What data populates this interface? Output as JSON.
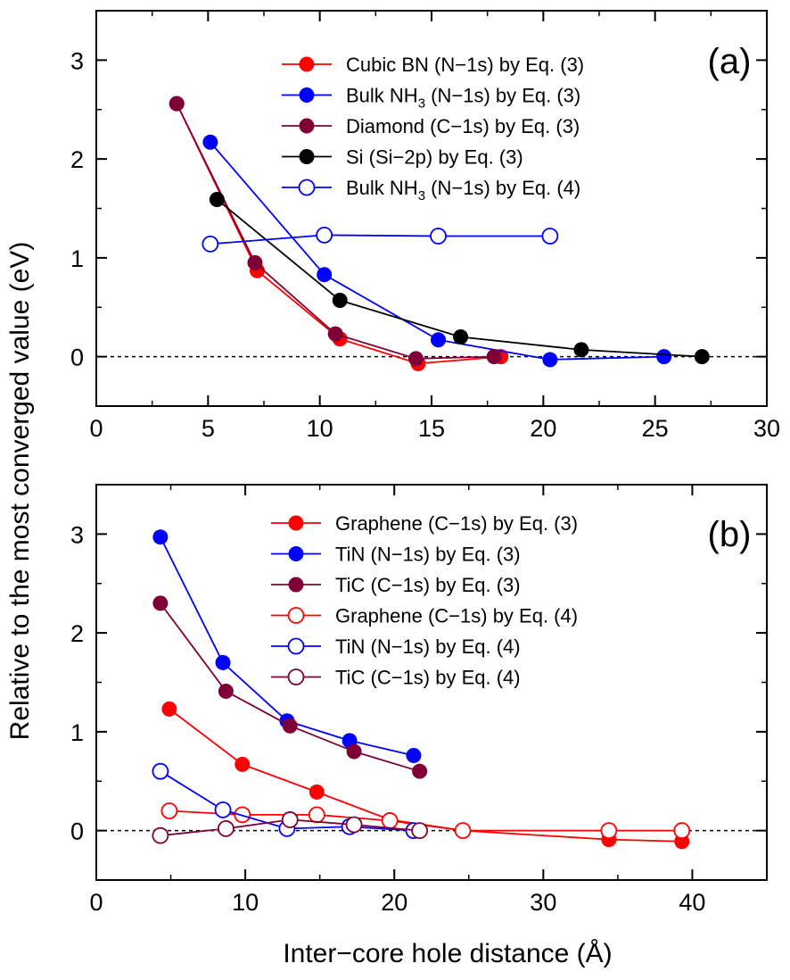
{
  "y_axis_label": "Relative to the most converged value (eV)",
  "chart_data": [
    {
      "type": "line",
      "panel_label": "(a)",
      "xlabel": "",
      "ylabel": "Relative to the most converged value (eV)",
      "xlim": [
        0,
        30
      ],
      "ylim": [
        -0.5,
        3.5
      ],
      "xticks": [
        0,
        5,
        10,
        15,
        20,
        25,
        30
      ],
      "yticks": [
        0,
        1,
        2,
        3
      ],
      "x_minor_step": 2.5,
      "y_minor_step": 0.5,
      "reference_line": 0,
      "legend_position": "top-right",
      "series": [
        {
          "label_main": "Cubic BN (N−1s) by Eq. (3)",
          "label_sub": "",
          "label_tail": "",
          "color": "#ff0000",
          "marker": "filled",
          "x": [
            3.6,
            7.2,
            10.9,
            14.4,
            18.1
          ],
          "y": [
            2.56,
            0.87,
            0.18,
            -0.07,
            0.0
          ]
        },
        {
          "label_main": "Bulk NH",
          "label_sub": "3",
          "label_tail": " (N−1s) by Eq. (3)",
          "color": "#0000ff",
          "marker": "filled",
          "x": [
            5.1,
            10.2,
            15.3,
            20.3,
            25.4
          ],
          "y": [
            2.17,
            0.83,
            0.17,
            -0.03,
            0.0
          ]
        },
        {
          "label_main": "Diamond (C−1s) by Eq. (3)",
          "label_sub": "",
          "label_tail": "",
          "color": "#7f0037",
          "marker": "filled",
          "x": [
            3.6,
            7.1,
            10.7,
            14.3,
            17.8
          ],
          "y": [
            2.56,
            0.95,
            0.23,
            -0.02,
            0.0
          ]
        },
        {
          "label_main": "Si (Si−2p) by Eq. (3)",
          "label_sub": "",
          "label_tail": "",
          "color": "#000000",
          "marker": "filled",
          "x": [
            5.4,
            10.9,
            16.3,
            21.7,
            27.1
          ],
          "y": [
            1.59,
            0.57,
            0.2,
            0.07,
            0.0
          ]
        },
        {
          "label_main": "Bulk NH",
          "label_sub": "3",
          "label_tail": "  (N−1s) by Eq. (4)",
          "color": "#0000ff",
          "marker": "open",
          "x": [
            5.1,
            10.2,
            15.3,
            20.3
          ],
          "y": [
            1.14,
            1.23,
            1.22,
            1.22
          ]
        }
      ]
    },
    {
      "type": "line",
      "panel_label": "(b)",
      "xlabel": "Inter−core hole distance (Å)",
      "ylabel": "Relative to the most converged value (eV)",
      "xlim": [
        0,
        45
      ],
      "ylim": [
        -0.5,
        3.5
      ],
      "xticks": [
        0,
        10,
        20,
        30,
        40
      ],
      "yticks": [
        0,
        1,
        2,
        3
      ],
      "x_minor_step": 5,
      "y_minor_step": 0.5,
      "reference_line": 0,
      "legend_position": "top-right",
      "series": [
        {
          "label_main": "Graphene (C−1s) by Eq. (3)",
          "label_sub": "",
          "label_tail": "",
          "color": "#ff0000",
          "marker": "filled",
          "x": [
            4.9,
            9.8,
            14.8,
            19.7,
            24.6,
            34.4,
            39.3
          ],
          "y": [
            1.23,
            0.67,
            0.39,
            0.11,
            0.0,
            -0.09,
            -0.11
          ]
        },
        {
          "label_main": "TiN (N−1s) by Eq. (3)",
          "label_sub": "",
          "label_tail": "",
          "color": "#0000ff",
          "marker": "filled",
          "x": [
            4.3,
            8.5,
            12.8,
            17.0,
            21.3
          ],
          "y": [
            2.97,
            1.7,
            1.11,
            0.91,
            0.76
          ]
        },
        {
          "label_main": "TiC (C−1s) by Eq. (3)",
          "label_sub": "",
          "label_tail": "",
          "color": "#7f0037",
          "marker": "filled",
          "x": [
            4.3,
            8.7,
            13.0,
            17.3,
            21.7
          ],
          "y": [
            2.3,
            1.41,
            1.06,
            0.8,
            0.6
          ]
        },
        {
          "label_main": "Graphene (C−1s) by Eq. (4)",
          "label_sub": "",
          "label_tail": "",
          "color": "#ff0000",
          "marker": "open",
          "x": [
            4.9,
            9.8,
            14.8,
            19.7,
            24.6,
            34.4,
            39.3
          ],
          "y": [
            0.2,
            0.16,
            0.16,
            0.1,
            0.0,
            0.0,
            0.0
          ]
        },
        {
          "label_main": "TiN (N−1s) by Eq. (4)",
          "label_sub": "",
          "label_tail": "",
          "color": "#0000ff",
          "marker": "open",
          "x": [
            4.3,
            8.5,
            12.8,
            17.0,
            21.3
          ],
          "y": [
            0.6,
            0.21,
            0.02,
            0.04,
            0.0
          ]
        },
        {
          "label_main": "TiC (C−1s) by Eq. (4)",
          "label_sub": "",
          "label_tail": "",
          "color": "#7f0037",
          "marker": "open",
          "x": [
            4.3,
            8.7,
            13.0,
            17.3,
            21.7
          ],
          "y": [
            -0.05,
            0.02,
            0.11,
            0.06,
            0.0
          ]
        }
      ]
    }
  ]
}
